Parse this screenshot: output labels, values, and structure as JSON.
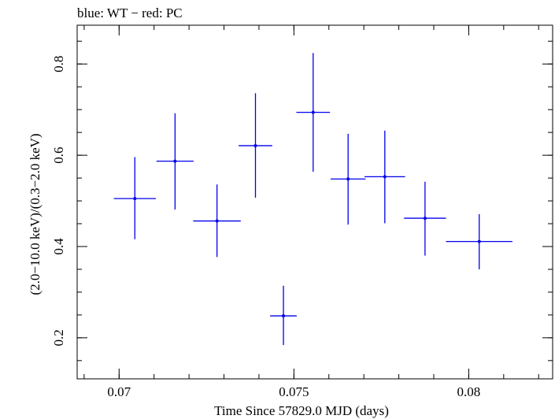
{
  "header": {
    "title": "blue: WT − red: PC"
  },
  "chart_data": {
    "type": "scatter",
    "title": "blue: WT − red: PC",
    "xlabel": "Time Since 57829.0 MJD (days)",
    "ylabel": "(2.0−10.0 keV)/(0.3−2.0 keV)",
    "xlim": [
      0.0688,
      0.0824
    ],
    "ylim": [
      0.11,
      0.885
    ],
    "xticks": [
      {
        "value": 0.07,
        "label": "0.07"
      },
      {
        "value": 0.075,
        "label": "0.075"
      },
      {
        "value": 0.08,
        "label": "0.08"
      }
    ],
    "xminor_step": 0.001,
    "yticks": [
      {
        "value": 0.2,
        "label": "0.2"
      },
      {
        "value": 0.4,
        "label": "0.4"
      },
      {
        "value": 0.6,
        "label": "0.6"
      },
      {
        "value": 0.8,
        "label": "0.8"
      }
    ],
    "yminor_step": 0.05,
    "grid": false,
    "colors": {
      "series": "#0000ee",
      "axes": "#000000"
    },
    "series": [
      {
        "name": "WT",
        "color": "#0000ee",
        "points": [
          {
            "x": 0.07045,
            "y": 0.505,
            "xerr": 0.0006,
            "ylo": 0.416,
            "yhi": 0.596
          },
          {
            "x": 0.0716,
            "y": 0.587,
            "xerr": 0.00053,
            "ylo": 0.481,
            "yhi": 0.692
          },
          {
            "x": 0.0728,
            "y": 0.456,
            "xerr": 0.00068,
            "ylo": 0.377,
            "yhi": 0.536
          },
          {
            "x": 0.0739,
            "y": 0.621,
            "xerr": 0.00048,
            "ylo": 0.507,
            "yhi": 0.736
          },
          {
            "x": 0.0747,
            "y": 0.248,
            "xerr": 0.00038,
            "ylo": 0.184,
            "yhi": 0.314
          },
          {
            "x": 0.07555,
            "y": 0.694,
            "xerr": 0.00048,
            "ylo": 0.564,
            "yhi": 0.824
          },
          {
            "x": 0.07655,
            "y": 0.548,
            "xerr": 0.0005,
            "ylo": 0.448,
            "yhi": 0.647
          },
          {
            "x": 0.0776,
            "y": 0.553,
            "xerr": 0.00058,
            "ylo": 0.451,
            "yhi": 0.654
          },
          {
            "x": 0.07875,
            "y": 0.462,
            "xerr": 0.0006,
            "ylo": 0.38,
            "yhi": 0.542
          },
          {
            "x": 0.0803,
            "y": 0.411,
            "xerr": 0.00095,
            "ylo": 0.35,
            "yhi": 0.471
          }
        ]
      }
    ]
  }
}
